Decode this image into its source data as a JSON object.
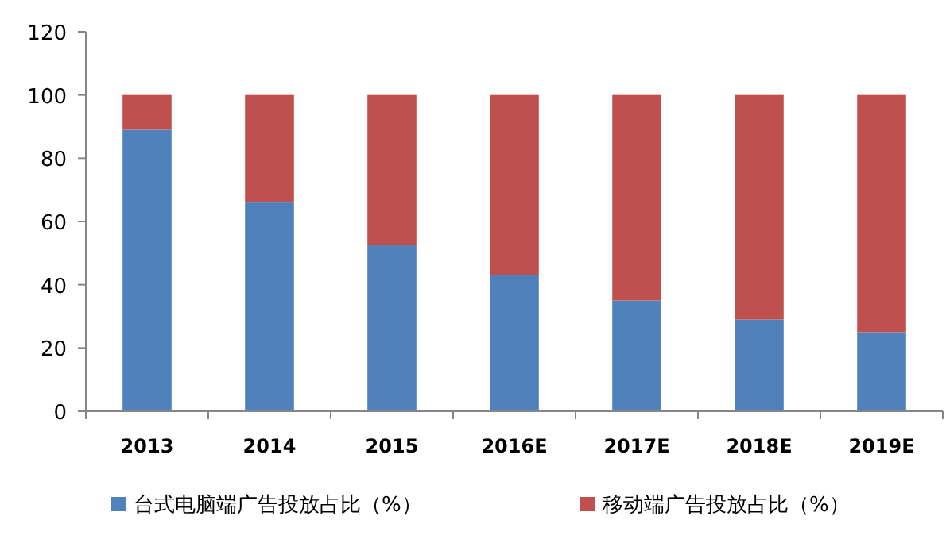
{
  "chart_data": {
    "type": "bar",
    "stacked": true,
    "categories": [
      "2013",
      "2014",
      "2015",
      "2016E",
      "2017E",
      "2018E",
      "2019E"
    ],
    "series": [
      {
        "name": "台式电脑端广告投放占比（%）",
        "color": "#4f81bd",
        "values": [
          89,
          66,
          52.5,
          43,
          35,
          29,
          25
        ]
      },
      {
        "name": "移动端广告投放占比（%）",
        "color": "#c0504d",
        "values": [
          11,
          34,
          47.5,
          57,
          65,
          71,
          75
        ]
      }
    ],
    "ylim": [
      0,
      120
    ],
    "yticks": [
      0,
      20,
      40,
      60,
      80,
      100,
      120
    ],
    "grid": false,
    "legend": "bottom"
  }
}
